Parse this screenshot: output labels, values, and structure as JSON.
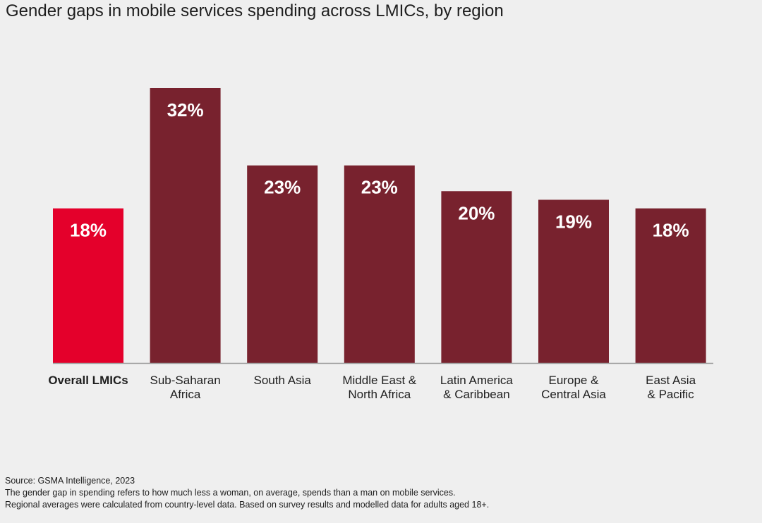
{
  "title": "Gender gaps in mobile services spending across LMICs, by region",
  "colors": {
    "highlight": "#e4002b",
    "bar": "#78222e",
    "axis": "#9a9a9a",
    "background": "#efefef"
  },
  "chart_data": {
    "type": "bar",
    "title": "Gender gaps in mobile services spending across LMICs, by region",
    "xlabel": "",
    "ylabel": "",
    "ylim": [
      0,
      35
    ],
    "grid": false,
    "categories": [
      [
        "Overall LMICs"
      ],
      [
        "Sub-Saharan",
        "Africa"
      ],
      [
        "South Asia"
      ],
      [
        "Middle East &",
        "North Africa"
      ],
      [
        "Latin America",
        "& Caribbean"
      ],
      [
        "Europe &",
        "Central Asia"
      ],
      [
        "East Asia",
        "& Pacific"
      ]
    ],
    "values": [
      18,
      32,
      23,
      23,
      20,
      19,
      18
    ],
    "data_labels": [
      "18%",
      "32%",
      "23%",
      "23%",
      "20%",
      "19%",
      "18%"
    ],
    "highlight_index": 0
  },
  "footer": {
    "source": "Source: GSMA Intelligence, 2023",
    "note1": "The gender gap in spending refers to how much less a woman, on average, spends than a man on mobile services.",
    "note2": "Regional averages were calculated from country-level data. Based on survey results and modelled data for adults aged 18+."
  }
}
